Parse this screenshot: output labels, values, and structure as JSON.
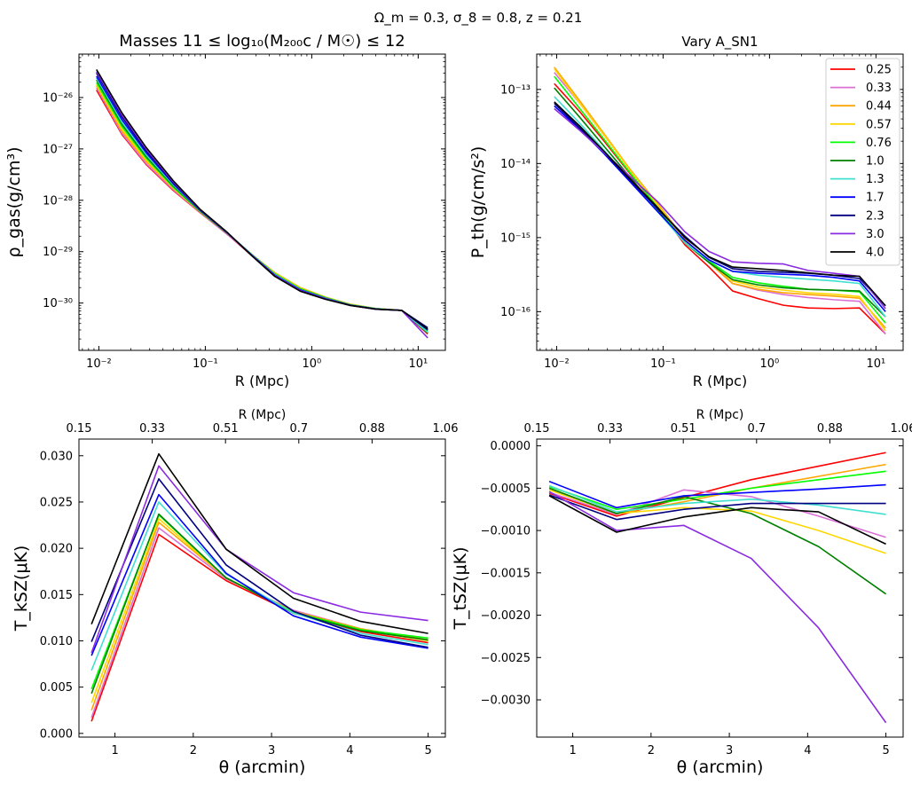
{
  "figure": {
    "suptitle": "Ω_m = 0.3, σ_8 = 0.8, z = 0.21",
    "colors": [
      "#ff0000",
      "#da70d6",
      "#ffa500",
      "#ffd700",
      "#00ff00",
      "#008000",
      "#40e0d0",
      "#0000ff",
      "#000080",
      "#8a2be2",
      "#000000"
    ],
    "legend_title_values": [
      "0.25",
      "0.33",
      "0.44",
      "0.57",
      "0.76",
      "1.0",
      "1.3",
      "1.7",
      "2.3",
      "3.0",
      "4.0"
    ]
  },
  "chart_data": [
    {
      "id": "rho",
      "type": "line",
      "title": "Masses 11 ≤ log₁₀(M₂₀₀c / M☉) ≤ 12",
      "xlabel": "R (Mpc)",
      "ylabel": "ρ_gas(g/cm³)",
      "xscale": "log",
      "yscale": "log",
      "xlim": [
        0.0065,
        18
      ],
      "ylim": [
        1.2e-31,
        7e-26
      ],
      "xticks": [
        {
          "v": 0.01,
          "label": "10⁻²"
        },
        {
          "v": 0.1,
          "label": "10⁻¹"
        },
        {
          "v": 1,
          "label": "10⁰"
        },
        {
          "v": 10,
          "label": "10¹"
        }
      ],
      "yticks": [
        {
          "v": 1e-30,
          "label": "10⁻³⁰"
        },
        {
          "v": 1e-29,
          "label": "10⁻²⁹"
        },
        {
          "v": 1e-28,
          "label": "10⁻²⁸"
        },
        {
          "v": 1e-27,
          "label": "10⁻²⁷"
        },
        {
          "v": 1e-26,
          "label": "10⁻²⁶"
        }
      ],
      "x": [
        0.0095,
        0.0165,
        0.028,
        0.05,
        0.09,
        0.16,
        0.27,
        0.45,
        0.78,
        1.35,
        2.3,
        4.0,
        7.0,
        12.3
      ],
      "series": [
        {
          "name": "0.25",
          "values": [
            1.4e-26,
            1.9e-27,
            4.9e-28,
            1.55e-28,
            5.7e-29,
            2.2e-29,
            8.6e-30,
            3.6e-30,
            1.85e-30,
            1.25e-30,
            9.3e-31,
            7.8e-31,
            7.2e-31,
            2.5e-31
          ]
        },
        {
          "name": "0.33",
          "values": [
            1.55e-26,
            2e-27,
            5.1e-28,
            1.6e-28,
            5.8e-29,
            2.2e-29,
            8.8e-30,
            3.8e-30,
            1.95e-30,
            1.28e-30,
            9.4e-31,
            7.8e-31,
            7.2e-31,
            2.8e-31
          ]
        },
        {
          "name": "0.44",
          "values": [
            1.7e-26,
            2.2e-27,
            5.6e-28,
            1.7e-28,
            5.9e-29,
            2.3e-29,
            9e-30,
            3.9e-30,
            2e-30,
            1.3e-30,
            9.5e-31,
            7.8e-31,
            7.2e-31,
            3e-31
          ]
        },
        {
          "name": "0.57",
          "values": [
            1.8e-26,
            2.4e-27,
            6e-28,
            1.75e-28,
            6e-29,
            2.3e-29,
            9e-30,
            3.8e-30,
            1.95e-30,
            1.28e-30,
            9.4e-31,
            7.8e-31,
            7.2e-31,
            2.9e-31
          ]
        },
        {
          "name": "0.76",
          "values": [
            1.95e-26,
            2.7e-27,
            6.5e-28,
            1.8e-28,
            6e-29,
            2.3e-29,
            9e-30,
            3.7e-30,
            1.9e-30,
            1.27e-30,
            9.3e-31,
            7.8e-31,
            7.2e-31,
            2.8e-31
          ]
        },
        {
          "name": "1.0",
          "values": [
            2.2e-26,
            3e-27,
            7e-28,
            1.9e-28,
            6.1e-29,
            2.3e-29,
            8.9e-30,
            3.6e-30,
            1.85e-30,
            1.25e-30,
            9.2e-31,
            7.7e-31,
            7.2e-31,
            2.6e-31
          ]
        },
        {
          "name": "1.3",
          "values": [
            2.4e-26,
            3.3e-27,
            7.6e-28,
            2e-28,
            6.2e-29,
            2.35e-29,
            8.9e-30,
            3.6e-30,
            1.83e-30,
            1.24e-30,
            9.2e-31,
            7.7e-31,
            7.2e-31,
            2.7e-31
          ]
        },
        {
          "name": "1.7",
          "values": [
            2.6e-26,
            3.7e-27,
            8.3e-28,
            2.1e-28,
            6.3e-29,
            2.35e-29,
            8.8e-30,
            3.5e-30,
            1.8e-30,
            1.22e-30,
            9.1e-31,
            7.7e-31,
            7.2e-31,
            3e-31
          ]
        },
        {
          "name": "2.3",
          "values": [
            3e-26,
            4.2e-27,
            9e-28,
            2.2e-28,
            6.4e-29,
            2.35e-29,
            8.7e-30,
            3.4e-30,
            1.75e-30,
            1.2e-30,
            9e-31,
            7.6e-31,
            7.2e-31,
            3.3e-31
          ]
        },
        {
          "name": "3.0",
          "values": [
            3.2e-26,
            4.6e-27,
            9.8e-28,
            2.3e-28,
            6.5e-29,
            2.35e-29,
            8.6e-30,
            3.4e-30,
            1.75e-30,
            1.2e-30,
            9e-31,
            7.6e-31,
            7.2e-31,
            2.1e-31
          ]
        },
        {
          "name": "4.0",
          "values": [
            3.5e-26,
            5e-27,
            1.05e-27,
            2.4e-28,
            6.6e-29,
            2.4e-29,
            8.5e-30,
            3.3e-30,
            1.7e-30,
            1.18e-30,
            9e-31,
            7.6e-31,
            7.2e-31,
            3.1e-31
          ]
        }
      ]
    },
    {
      "id": "pth",
      "type": "line",
      "title": "Vary A_SN1",
      "xlabel": "R (Mpc)",
      "ylabel": "P_th(g/cm/s²)",
      "xscale": "log",
      "yscale": "log",
      "xlim": [
        0.0065,
        18
      ],
      "ylim": [
        3e-17,
        3e-13
      ],
      "xticks": [
        {
          "v": 0.01,
          "label": "10⁻²"
        },
        {
          "v": 0.1,
          "label": "10⁻¹"
        },
        {
          "v": 1,
          "label": "10⁰"
        },
        {
          "v": 10,
          "label": "10¹"
        }
      ],
      "yticks": [
        {
          "v": 1e-16,
          "label": "10⁻¹⁶"
        },
        {
          "v": 1e-15,
          "label": "10⁻¹⁵"
        },
        {
          "v": 1e-14,
          "label": "10⁻¹⁴"
        },
        {
          "v": 1e-13,
          "label": "10⁻¹³"
        }
      ],
      "x": [
        0.0095,
        0.0165,
        0.028,
        0.05,
        0.09,
        0.16,
        0.27,
        0.45,
        0.78,
        1.35,
        2.3,
        4.0,
        7.0,
        12.3
      ],
      "series": [
        {
          "name": "0.25",
          "values": [
            1.2e-13,
            5e-14,
            2e-14,
            7e-15,
            2.5e-15,
            8e-16,
            4e-16,
            1.9e-16,
            1.5e-16,
            1.22e-16,
            1.12e-16,
            1.1e-16,
            1.12e-16,
            5e-17
          ]
        },
        {
          "name": "0.33",
          "values": [
            1.7e-13,
            6.5e-14,
            2.4e-14,
            8e-15,
            2.8e-15,
            9.5e-16,
            4.6e-16,
            2.4e-16,
            1.95e-16,
            1.7e-16,
            1.55e-16,
            1.45e-16,
            1.38e-16,
            5e-17
          ]
        },
        {
          "name": "0.44",
          "values": [
            2e-13,
            7e-14,
            2.5e-14,
            8e-15,
            2.8e-15,
            9.5e-16,
            4.6e-16,
            2.4e-16,
            2e-16,
            1.8e-16,
            1.7e-16,
            1.62e-16,
            1.52e-16,
            6e-17
          ]
        },
        {
          "name": "0.57",
          "values": [
            1.9e-13,
            6.5e-14,
            2.4e-14,
            7.8e-15,
            2.7e-15,
            9e-16,
            4.6e-16,
            2.6e-16,
            2.15e-16,
            1.95e-16,
            1.8e-16,
            1.72e-16,
            1.6e-16,
            5.5e-17
          ]
        },
        {
          "name": "0.76",
          "values": [
            1.5e-13,
            5.5e-14,
            2.1e-14,
            7.2e-15,
            2.5e-15,
            8.5e-16,
            4.8e-16,
            2.9e-16,
            2.45e-16,
            2.2e-16,
            2e-16,
            1.95e-16,
            1.85e-16,
            7e-17
          ]
        },
        {
          "name": "1.0",
          "values": [
            1.05e-13,
            4.2e-14,
            1.7e-14,
            6.3e-15,
            2.3e-15,
            8.5e-16,
            4.6e-16,
            2.7e-16,
            2.3e-16,
            2.1e-16,
            2e-16,
            1.95e-16,
            1.9e-16,
            8.5e-17
          ]
        },
        {
          "name": "1.3",
          "values": [
            8e-14,
            3.5e-14,
            1.5e-14,
            5.8e-15,
            2.2e-15,
            8.5e-16,
            4.9e-16,
            3.5e-16,
            3.1e-16,
            2.9e-16,
            2.75e-16,
            2.6e-16,
            2.4e-16,
            8.5e-17
          ]
        },
        {
          "name": "1.7",
          "values": [
            6e-14,
            2.9e-14,
            1.35e-14,
            5.5e-15,
            2.2e-15,
            9.2e-16,
            5e-16,
            3.5e-16,
            3.3e-16,
            3.2e-16,
            3.1e-16,
            2.9e-16,
            2.6e-16,
            1e-16
          ]
        },
        {
          "name": "2.3",
          "values": [
            6.5e-14,
            3e-14,
            1.4e-14,
            5.8e-15,
            2.4e-15,
            1.05e-15,
            5.4e-16,
            3.8e-16,
            3.5e-16,
            3.4e-16,
            3.3e-16,
            3.1e-16,
            2.8e-16,
            1.2e-16
          ]
        },
        {
          "name": "3.0",
          "values": [
            5.5e-14,
            2.8e-14,
            1.4e-14,
            6.5e-15,
            3e-15,
            1.2e-15,
            6.5e-16,
            4.7e-16,
            4.5e-16,
            4.4e-16,
            3.6e-16,
            3.3e-16,
            3e-16,
            1.1e-16
          ]
        },
        {
          "name": "4.0",
          "values": [
            6.8e-14,
            3.2e-14,
            1.45e-14,
            6e-15,
            2.5e-15,
            1e-15,
            5.5e-16,
            4e-16,
            3.8e-16,
            3.6e-16,
            3.35e-16,
            3.1e-16,
            3e-16,
            1.2e-16
          ]
        }
      ],
      "legend": {
        "placement": "top-right"
      }
    },
    {
      "id": "ksz",
      "type": "line",
      "title": "",
      "xlabel": "θ (arcmin)",
      "ylabel": "T_kSZ(μK)",
      "toplabel": "R (Mpc)",
      "xscale": "linear",
      "yscale": "linear",
      "xlim": [
        0.54,
        5.22
      ],
      "ylim": [
        -0.0004,
        0.0318
      ],
      "xticks": [
        {
          "v": 1,
          "label": "1"
        },
        {
          "v": 2,
          "label": "2"
        },
        {
          "v": 3,
          "label": "3"
        },
        {
          "v": 4,
          "label": "4"
        },
        {
          "v": 5,
          "label": "5"
        }
      ],
      "yticks": [
        {
          "v": 0.0,
          "label": "0.000"
        },
        {
          "v": 0.005,
          "label": "0.005"
        },
        {
          "v": 0.01,
          "label": "0.010"
        },
        {
          "v": 0.015,
          "label": "0.015"
        },
        {
          "v": 0.02,
          "label": "0.020"
        },
        {
          "v": 0.025,
          "label": "0.025"
        },
        {
          "v": 0.03,
          "label": "0.030"
        }
      ],
      "topticks": [
        {
          "v": 0.54,
          "label": "0.15"
        },
        {
          "v": 1.476,
          "label": "0.33"
        },
        {
          "v": 2.412,
          "label": "0.51"
        },
        {
          "v": 3.348,
          "label": "0.7"
        },
        {
          "v": 4.284,
          "label": "0.88"
        },
        {
          "v": 5.22,
          "label": "1.06"
        }
      ],
      "x": [
        0.7,
        1.56,
        2.42,
        3.28,
        4.14,
        5.0
      ],
      "series": [
        {
          "name": "0.25",
          "values": [
            0.0013,
            0.0215,
            0.0165,
            0.013,
            0.011,
            0.0098
          ]
        },
        {
          "name": "0.33",
          "values": [
            0.0017,
            0.0222,
            0.0167,
            0.0133,
            0.0113,
            0.0101
          ]
        },
        {
          "name": "0.44",
          "values": [
            0.0025,
            0.0228,
            0.0168,
            0.0132,
            0.0113,
            0.0101
          ]
        },
        {
          "name": "0.57",
          "values": [
            0.0033,
            0.0232,
            0.0168,
            0.0131,
            0.0112,
            0.01
          ]
        },
        {
          "name": "0.76",
          "values": [
            0.0048,
            0.0236,
            0.0168,
            0.0131,
            0.0112,
            0.0103
          ]
        },
        {
          "name": "1.0",
          "values": [
            0.0043,
            0.0237,
            0.0168,
            0.013,
            0.0111,
            0.0101
          ]
        },
        {
          "name": "1.3",
          "values": [
            0.0068,
            0.025,
            0.0172,
            0.013,
            0.0108,
            0.0096
          ]
        },
        {
          "name": "1.7",
          "values": [
            0.0084,
            0.0258,
            0.0173,
            0.0127,
            0.0104,
            0.0092
          ]
        },
        {
          "name": "2.3",
          "values": [
            0.0099,
            0.0275,
            0.0182,
            0.0132,
            0.0106,
            0.0093
          ]
        },
        {
          "name": "3.0",
          "values": [
            0.0087,
            0.0289,
            0.0199,
            0.0152,
            0.0131,
            0.0122
          ]
        },
        {
          "name": "4.0",
          "values": [
            0.0118,
            0.0302,
            0.0199,
            0.0146,
            0.0121,
            0.0108
          ]
        }
      ]
    },
    {
      "id": "tsz",
      "type": "line",
      "title": "",
      "xlabel": "θ (arcmin)",
      "ylabel": "T_tSZ(μK)",
      "toplabel": "R (Mpc)",
      "xscale": "linear",
      "yscale": "linear",
      "xlim": [
        0.54,
        5.22
      ],
      "ylim": [
        -0.00344,
        8e-05
      ],
      "xticks": [
        {
          "v": 1,
          "label": "1"
        },
        {
          "v": 2,
          "label": "2"
        },
        {
          "v": 3,
          "label": "3"
        },
        {
          "v": 4,
          "label": "4"
        },
        {
          "v": 5,
          "label": "5"
        }
      ],
      "yticks": [
        {
          "v": 0.0,
          "label": "0.0000"
        },
        {
          "v": -0.0005,
          "label": "−0.0005"
        },
        {
          "v": -0.001,
          "label": "−0.0010"
        },
        {
          "v": -0.0015,
          "label": "−0.0015"
        },
        {
          "v": -0.002,
          "label": "−0.0020"
        },
        {
          "v": -0.0025,
          "label": "−0.0025"
        },
        {
          "v": -0.003,
          "label": "−0.0030"
        }
      ],
      "topticks": [
        {
          "v": 0.54,
          "label": "0.15"
        },
        {
          "v": 1.476,
          "label": "0.33"
        },
        {
          "v": 2.412,
          "label": "0.51"
        },
        {
          "v": 3.348,
          "label": "0.7"
        },
        {
          "v": 4.284,
          "label": "0.88"
        },
        {
          "v": 5.22,
          "label": "1.06"
        }
      ],
      "x": [
        0.7,
        1.56,
        2.42,
        3.28,
        4.14,
        5.0
      ],
      "series": [
        {
          "name": "0.25",
          "values": [
            -0.00056,
            -0.00083,
            -0.00061,
            -0.0004,
            -0.00024,
            -8e-05
          ]
        },
        {
          "name": "0.33",
          "values": [
            -0.00055,
            -0.00081,
            -0.00052,
            -0.0006,
            -0.00083,
            -0.00108
          ]
        },
        {
          "name": "0.44",
          "values": [
            -0.0005,
            -0.0008,
            -0.00066,
            -0.0005,
            -0.00036,
            -0.00022
          ]
        },
        {
          "name": "0.57",
          "values": [
            -0.00052,
            -0.0008,
            -0.00073,
            -0.00077,
            -0.001,
            -0.00127
          ]
        },
        {
          "name": "0.76",
          "values": [
            -0.00048,
            -0.00075,
            -0.00063,
            -0.0005,
            -0.0004,
            -0.0003
          ]
        },
        {
          "name": "1.0",
          "values": [
            -0.0005,
            -0.0008,
            -0.0006,
            -0.0008,
            -0.00119,
            -0.00175
          ]
        },
        {
          "name": "1.3",
          "values": [
            -0.00047,
            -0.00078,
            -0.00068,
            -0.00063,
            -0.0007,
            -0.00081
          ]
        },
        {
          "name": "1.7",
          "values": [
            -0.00042,
            -0.00073,
            -0.00059,
            -0.00055,
            -0.00051,
            -0.00046
          ]
        },
        {
          "name": "2.3",
          "values": [
            -0.00058,
            -0.00087,
            -0.00075,
            -0.00068,
            -0.00068,
            -0.00068
          ]
        },
        {
          "name": "3.0",
          "values": [
            -0.00054,
            -0.001,
            -0.00094,
            -0.00133,
            -0.00215,
            -0.00327
          ]
        },
        {
          "name": "4.0",
          "values": [
            -0.00059,
            -0.00102,
            -0.00084,
            -0.00073,
            -0.00078,
            -0.00116
          ]
        }
      ]
    }
  ]
}
